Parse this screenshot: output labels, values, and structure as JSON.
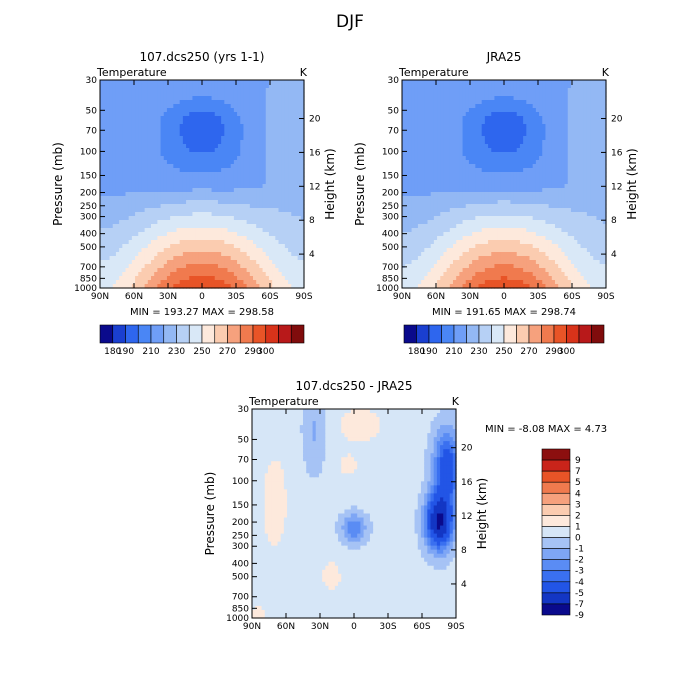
{
  "figure_title": "DJF",
  "chart_data": [
    {
      "type": "contour",
      "title": "107.dcs250 (yrs 1-1)",
      "left_label": "Temperature",
      "right_label": "K",
      "xlabel": "",
      "ylabel": "Pressure (mb)",
      "y2label": "Height (km)",
      "x_ticks": [
        "90N",
        "60N",
        "30N",
        "0",
        "30S",
        "60S",
        "90S"
      ],
      "y_ticks": [
        "30",
        "50",
        "70",
        "100",
        "150",
        "200",
        "250",
        "300",
        "400",
        "500",
        "700",
        "850",
        "1000"
      ],
      "y2_ticks": [
        "20",
        "16",
        "12",
        "8",
        "4"
      ],
      "ylim": [
        1000,
        30
      ],
      "min_max_text": "MIN = 193.27   MAX = 298.58",
      "min": 193.27,
      "max": 298.58,
      "levels": [
        180,
        190,
        200,
        210,
        220,
        230,
        240,
        250,
        260,
        270,
        280,
        290,
        300
      ],
      "colorbar_labels": [
        "180",
        "190",
        "210",
        "230",
        "250",
        "270",
        "290",
        "300"
      ],
      "colors": [
        "#0a0a8c",
        "#1a3fd0",
        "#2e66ee",
        "#4a86f5",
        "#6f9ef7",
        "#93b8f4",
        "#b6d0f5",
        "#d9e8f7",
        "#fde9dc",
        "#fbccb0",
        "#f6a17d",
        "#f07a4e",
        "#e85427",
        "#d8331a",
        "#b8191a",
        "#800c0c"
      ]
    },
    {
      "type": "contour",
      "title": "JRA25",
      "left_label": "Temperature",
      "right_label": "K",
      "xlabel": "",
      "ylabel": "Pressure (mb)",
      "y2label": "Height (km)",
      "x_ticks": [
        "90N",
        "60N",
        "30N",
        "0",
        "30S",
        "60S",
        "90S"
      ],
      "y_ticks": [
        "30",
        "50",
        "70",
        "100",
        "150",
        "200",
        "250",
        "300",
        "400",
        "500",
        "700",
        "850",
        "1000"
      ],
      "y2_ticks": [
        "20",
        "16",
        "12",
        "8",
        "4"
      ],
      "ylim": [
        1000,
        30
      ],
      "min_max_text": "MIN = 191.65   MAX = 298.74",
      "min": 191.65,
      "max": 298.74,
      "levels": [
        180,
        190,
        200,
        210,
        220,
        230,
        240,
        250,
        260,
        270,
        280,
        290,
        300
      ],
      "colorbar_labels": [
        "180",
        "190",
        "210",
        "230",
        "250",
        "270",
        "290",
        "300"
      ],
      "colors": [
        "#0a0a8c",
        "#1a3fd0",
        "#2e66ee",
        "#4a86f5",
        "#6f9ef7",
        "#93b8f4",
        "#b6d0f5",
        "#d9e8f7",
        "#fde9dc",
        "#fbccb0",
        "#f6a17d",
        "#f07a4e",
        "#e85427",
        "#d8331a",
        "#b8191a",
        "#800c0c"
      ]
    },
    {
      "type": "contour",
      "title": "107.dcs250 - JRA25",
      "left_label": "Temperature",
      "right_label": "K",
      "xlabel": "",
      "ylabel": "Pressure (mb)",
      "y2label": "Height (km)",
      "x_ticks": [
        "90N",
        "60N",
        "30N",
        "0",
        "30S",
        "60S",
        "90S"
      ],
      "y_ticks": [
        "30",
        "50",
        "70",
        "100",
        "150",
        "200",
        "250",
        "300",
        "400",
        "500",
        "700",
        "850",
        "1000"
      ],
      "y2_ticks": [
        "20",
        "16",
        "12",
        "8",
        "4"
      ],
      "ylim": [
        1000,
        30
      ],
      "min_max_text": "MIN =   -8.08   MAX =    4.73",
      "min": -8.08,
      "max": 4.73,
      "levels": [
        -9,
        -7,
        -5,
        -4,
        -3,
        -2,
        -1,
        0,
        1,
        2,
        3,
        4,
        5,
        7,
        9
      ],
      "colorbar_labels": [
        "9",
        "7",
        "5",
        "4",
        "3",
        "2",
        "1",
        "0",
        "-1",
        "-2",
        "-3",
        "-4",
        "-5",
        "-7",
        "-9"
      ],
      "colors": [
        "#0a0a8c",
        "#1336c4",
        "#2255e6",
        "#3a70f0",
        "#5a8cf4",
        "#7ea6f5",
        "#a6c3f5",
        "#d6e6f7",
        "#fde9dc",
        "#fbccb0",
        "#f6a17d",
        "#f07a4e",
        "#e85427",
        "#c9241a",
        "#8c0f0f"
      ]
    }
  ]
}
